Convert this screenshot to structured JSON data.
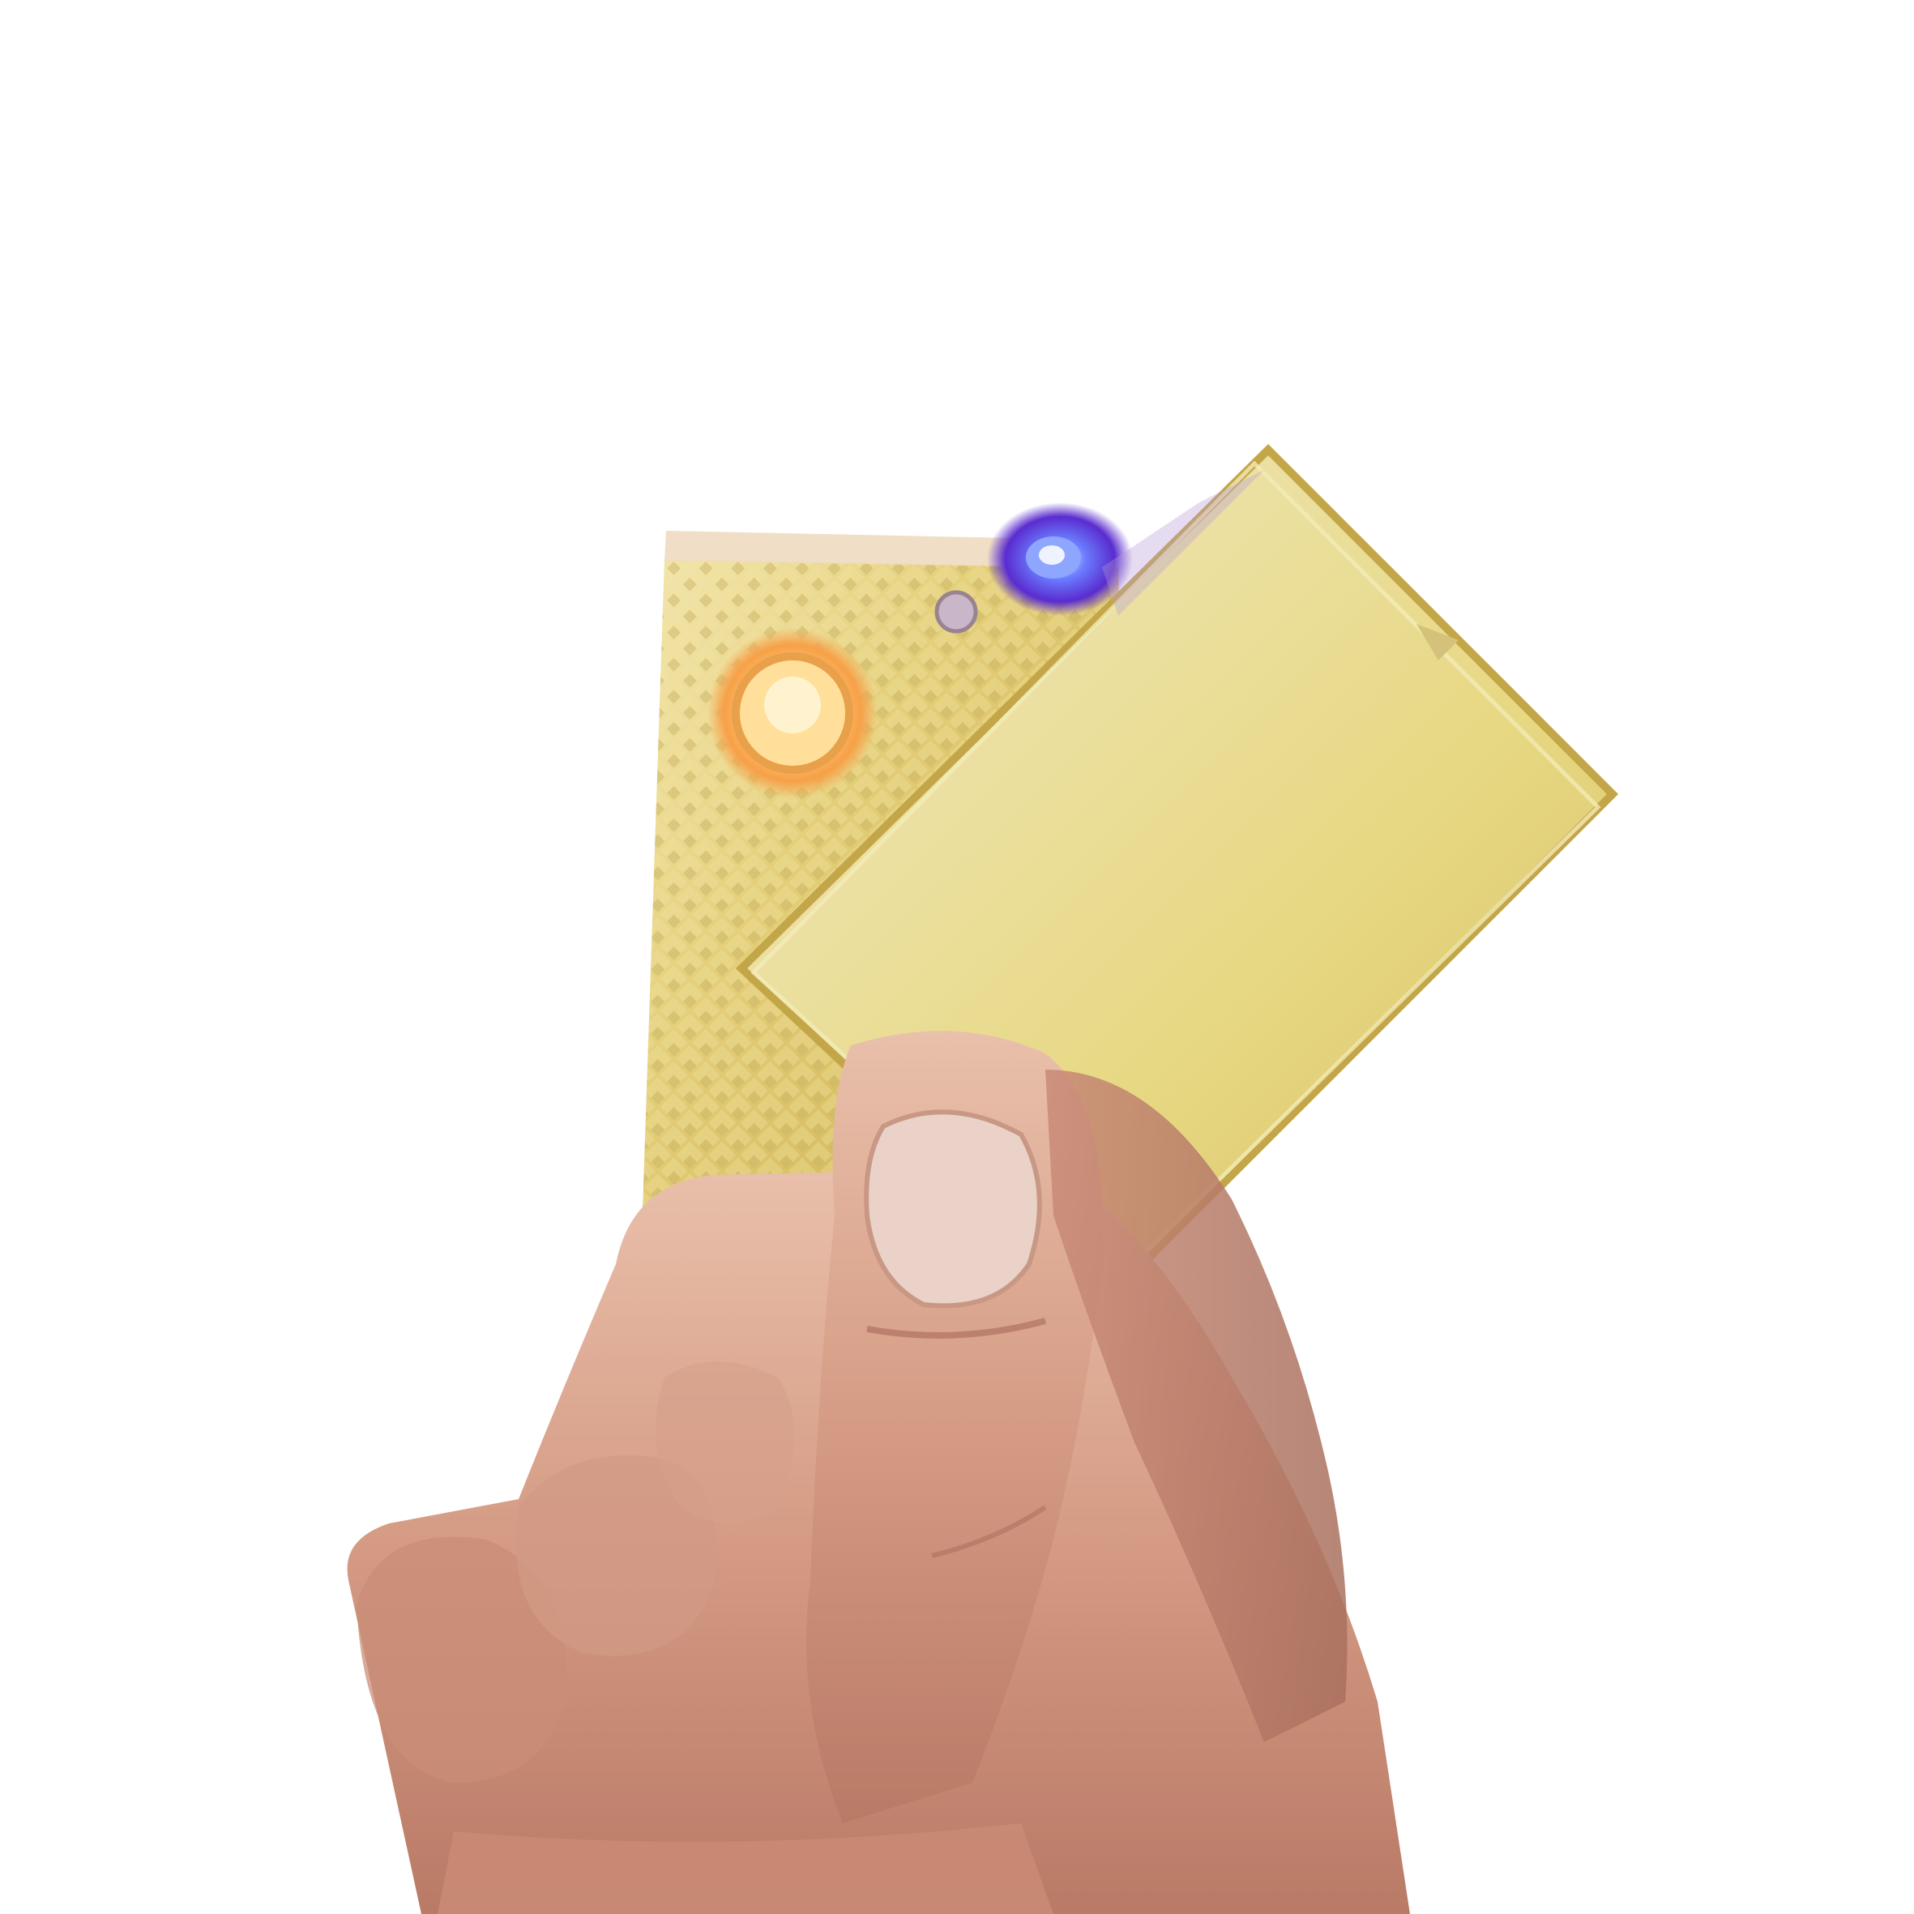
{
  "photo": {
    "background_color": "#ffffff",
    "colors": {
      "gold_light": "#efe39a",
      "gold_mid": "#d9c160",
      "gold_dark": "#a88a30",
      "skin_light": "#e6b8a2",
      "skin_mid": "#cf9680",
      "skin_dark": "#a86a58",
      "led_blue": "#5a3cff",
      "led_orange": "#ffb45a"
    }
  }
}
